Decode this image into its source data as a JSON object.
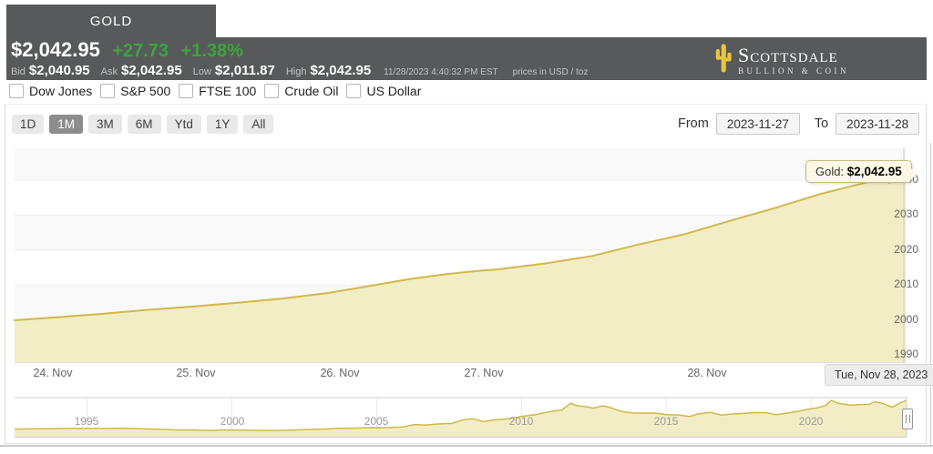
{
  "header": {
    "tab": "GOLD",
    "price": "$2,042.95",
    "change": "+27.73",
    "change_pct": "+1.38%",
    "bid_label": "Bid",
    "bid": "$2,040.95",
    "ask_label": "Ask",
    "ask": "$2,042.95",
    "low_label": "Low",
    "low": "$2,011.87",
    "high_label": "High",
    "high": "$2,042.95",
    "timestamp": "11/28/2023 4:40:32 PM EST",
    "unit_note": "prices in USD / toz",
    "logo_line1": "Scottsdale",
    "logo_line2": "Bullion & Coin"
  },
  "compare": {
    "options": [
      {
        "label": "Dow Jones",
        "checked": false
      },
      {
        "label": "S&P 500",
        "checked": false
      },
      {
        "label": "FTSE 100",
        "checked": false
      },
      {
        "label": "Crude Oil",
        "checked": false
      },
      {
        "label": "US Dollar",
        "checked": false
      }
    ]
  },
  "toolbar": {
    "ranges": [
      {
        "label": "1D",
        "selected": false
      },
      {
        "label": "1M",
        "selected": true
      },
      {
        "label": "3M",
        "selected": false
      },
      {
        "label": "6M",
        "selected": false
      },
      {
        "label": "Ytd",
        "selected": false
      },
      {
        "label": "1Y",
        "selected": false
      },
      {
        "label": "All",
        "selected": false
      }
    ],
    "from_label": "From",
    "from_value": "2023-11-27",
    "to_label": "To",
    "to_value": "2023-11-28"
  },
  "tooltip": {
    "series_label": "Gold:",
    "value": "$2,042.95"
  },
  "date_flag": "Tue, Nov 28, 2023",
  "colors": {
    "header_bg": "#58595b",
    "change_green": "#3aa63a",
    "gold_line": "#d0b84a",
    "gold_fill": "#f3edc6",
    "cactus_yellow": "#e9c53a"
  },
  "chart_data": [
    {
      "type": "area",
      "name": "Gold",
      "title": "",
      "xlabel": "",
      "ylabel": "",
      "x_labels": [
        "24. Nov",
        "25. Nov",
        "26. Nov",
        "27. Nov",
        "28. Nov"
      ],
      "yticks": [
        2040,
        2030,
        2020,
        2010,
        2000,
        1990
      ],
      "ylim": [
        1987,
        2046
      ],
      "last_value": 2042.95,
      "line_color": "#d0b84a",
      "fill_color": "#f3edc6",
      "points": [
        [
          0.0,
          2000.0
        ],
        [
          0.045,
          2000.8
        ],
        [
          0.096,
          2001.8
        ],
        [
          0.147,
          2002.9
        ],
        [
          0.199,
          2003.9
        ],
        [
          0.25,
          2005.0
        ],
        [
          0.301,
          2006.2
        ],
        [
          0.352,
          2007.8
        ],
        [
          0.403,
          2010.0
        ],
        [
          0.444,
          2011.8
        ],
        [
          0.485,
          2013.2
        ],
        [
          0.508,
          2013.8
        ],
        [
          0.526,
          2014.2
        ],
        [
          0.541,
          2014.5
        ],
        [
          0.557,
          2015.0
        ],
        [
          0.598,
          2016.3
        ],
        [
          0.649,
          2018.4
        ],
        [
          0.7,
          2021.6
        ],
        [
          0.751,
          2024.5
        ],
        [
          0.803,
          2028.4
        ],
        [
          0.854,
          2032.1
        ],
        [
          0.905,
          2036.1
        ],
        [
          0.941,
          2038.4
        ],
        [
          0.961,
          2039.7
        ],
        [
          0.974,
          2040.3
        ],
        [
          0.982,
          2039.2
        ],
        [
          0.99,
          2042.9
        ],
        [
          0.997,
          2041.9
        ],
        [
          1.0,
          2042.95
        ]
      ]
    },
    {
      "type": "area",
      "role": "navigator",
      "name": "Gold (long term)",
      "x_ticks": [
        1995,
        2000,
        2005,
        2010,
        2015,
        2020
      ],
      "xlim": [
        1992.5,
        2023.3
      ],
      "ylim": [
        -50,
        2050
      ],
      "line_color": "#d0b84a",
      "fill_color": "#f3edc6",
      "points": [
        [
          1992.5,
          350
        ],
        [
          1993.0,
          358
        ],
        [
          1993.6,
          372
        ],
        [
          1994.2,
          384
        ],
        [
          1995.0,
          386
        ],
        [
          1995.8,
          388
        ],
        [
          1996.3,
          392
        ],
        [
          1996.9,
          368
        ],
        [
          1997.5,
          330
        ],
        [
          1998.1,
          294
        ],
        [
          1998.7,
          292
        ],
        [
          1999.3,
          258
        ],
        [
          1999.7,
          300
        ],
        [
          2000.2,
          282
        ],
        [
          2000.8,
          272
        ],
        [
          2001.3,
          262
        ],
        [
          2001.9,
          278
        ],
        [
          2002.5,
          312
        ],
        [
          2003.1,
          348
        ],
        [
          2003.7,
          388
        ],
        [
          2004.2,
          402
        ],
        [
          2004.8,
          435
        ],
        [
          2005.3,
          428
        ],
        [
          2005.9,
          475
        ],
        [
          2006.3,
          620
        ],
        [
          2006.7,
          590
        ],
        [
          2007.1,
          650
        ],
        [
          2007.6,
          680
        ],
        [
          2008.0,
          905
        ],
        [
          2008.3,
          960
        ],
        [
          2008.7,
          790
        ],
        [
          2009.0,
          880
        ],
        [
          2009.5,
          950
        ],
        [
          2010.0,
          1090
        ],
        [
          2010.5,
          1210
        ],
        [
          2011.0,
          1390
        ],
        [
          2011.4,
          1480
        ],
        [
          2011.7,
          1880
        ],
        [
          2011.9,
          1740
        ],
        [
          2012.2,
          1680
        ],
        [
          2012.5,
          1590
        ],
        [
          2012.8,
          1720
        ],
        [
          2013.0,
          1660
        ],
        [
          2013.4,
          1420
        ],
        [
          2013.8,
          1300
        ],
        [
          2014.2,
          1290
        ],
        [
          2014.6,
          1300
        ],
        [
          2015.0,
          1200
        ],
        [
          2015.4,
          1190
        ],
        [
          2015.8,
          1090
        ],
        [
          2016.1,
          1240
        ],
        [
          2016.5,
          1340
        ],
        [
          2016.9,
          1170
        ],
        [
          2017.3,
          1240
        ],
        [
          2017.7,
          1280
        ],
        [
          2018.1,
          1330
        ],
        [
          2018.5,
          1300
        ],
        [
          2018.8,
          1200
        ],
        [
          2019.2,
          1300
        ],
        [
          2019.6,
          1420
        ],
        [
          2019.9,
          1520
        ],
        [
          2020.2,
          1600
        ],
        [
          2020.5,
          1740
        ],
        [
          2020.7,
          2050
        ],
        [
          2020.9,
          1900
        ],
        [
          2021.1,
          1830
        ],
        [
          2021.4,
          1760
        ],
        [
          2021.7,
          1800
        ],
        [
          2022.0,
          1810
        ],
        [
          2022.2,
          1970
        ],
        [
          2022.5,
          1850
        ],
        [
          2022.8,
          1640
        ],
        [
          2023.0,
          1830
        ],
        [
          2023.1,
          1920
        ],
        [
          2023.2,
          1980
        ],
        [
          2023.3,
          2040
        ]
      ]
    }
  ]
}
